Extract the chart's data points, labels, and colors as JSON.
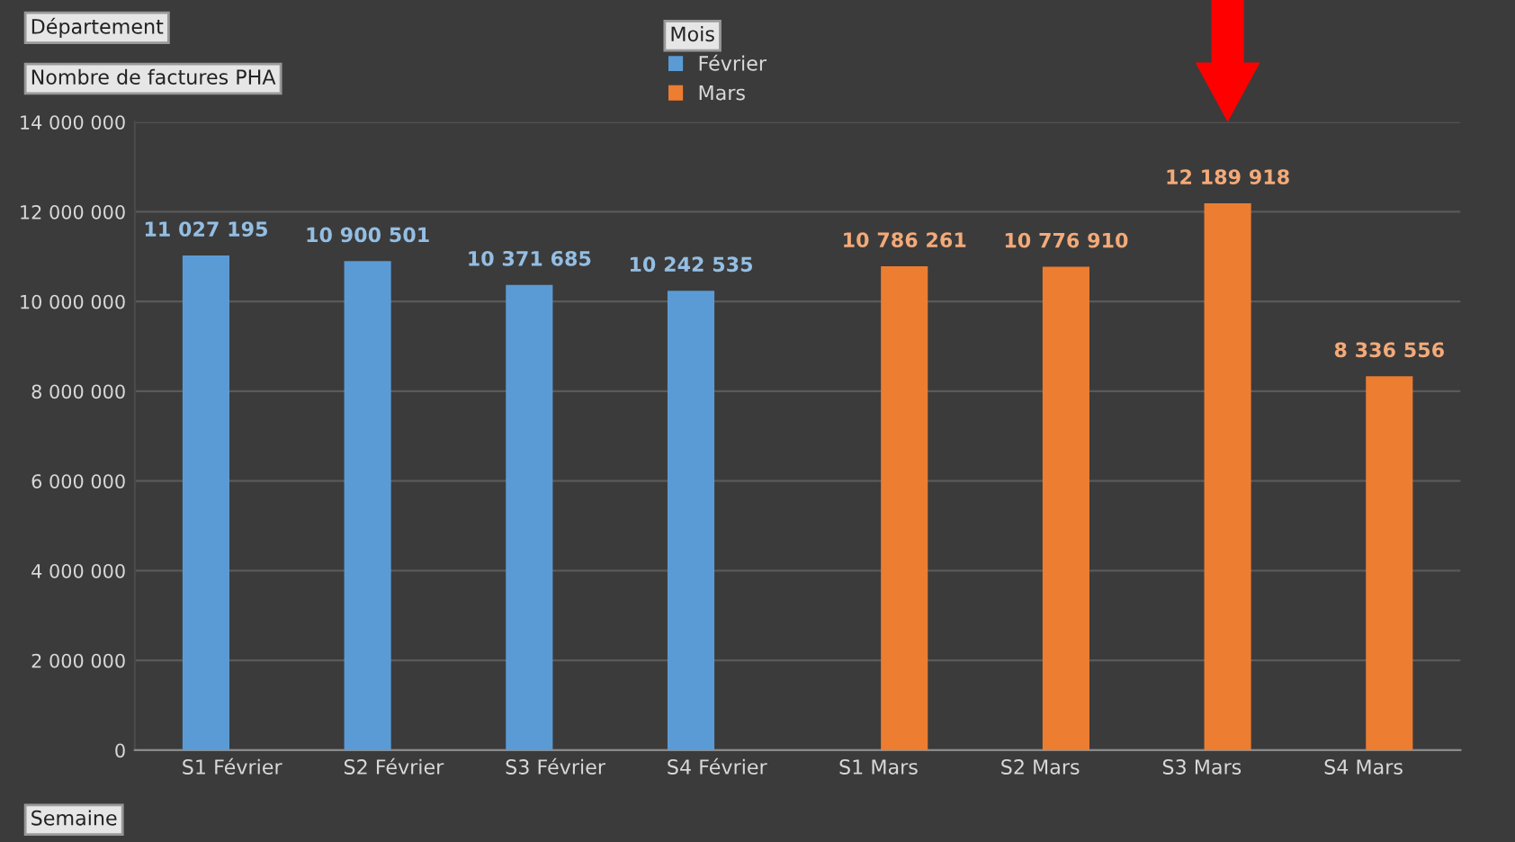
{
  "chart_data": {
    "type": "bar",
    "categories": [
      "S1 Février",
      "S2 Février",
      "S3 Février",
      "S4 Février",
      "S1 Mars",
      "S2 Mars",
      "S3 Mars",
      "S4 Mars"
    ],
    "series": [
      {
        "name": "Février",
        "color": "#5b9bd5",
        "values": [
          11027195,
          10900501,
          10371685,
          10242535,
          null,
          null,
          null,
          null
        ]
      },
      {
        "name": "Mars",
        "color": "#ed7d31",
        "values": [
          null,
          null,
          null,
          null,
          10786261,
          10776910,
          12189918,
          8336556
        ]
      }
    ],
    "ylim": [
      0,
      14000000
    ],
    "yticks": [
      {
        "value": 0,
        "label": "0"
      },
      {
        "value": 2000000,
        "label": "2 000 000"
      },
      {
        "value": 4000000,
        "label": "4 000 000"
      },
      {
        "value": 6000000,
        "label": "6 000 000"
      },
      {
        "value": 8000000,
        "label": "8 000 000"
      },
      {
        "value": 10000000,
        "label": "10 000 000"
      },
      {
        "value": 12000000,
        "label": "12 000 000"
      },
      {
        "value": 14000000,
        "label": "14 000 000"
      }
    ],
    "grid": "y",
    "legend": "top",
    "legend_title": "Mois",
    "data_labels": true,
    "annotations": [
      "Département",
      "Nombre de factures PHA",
      "Semaine"
    ]
  }
}
